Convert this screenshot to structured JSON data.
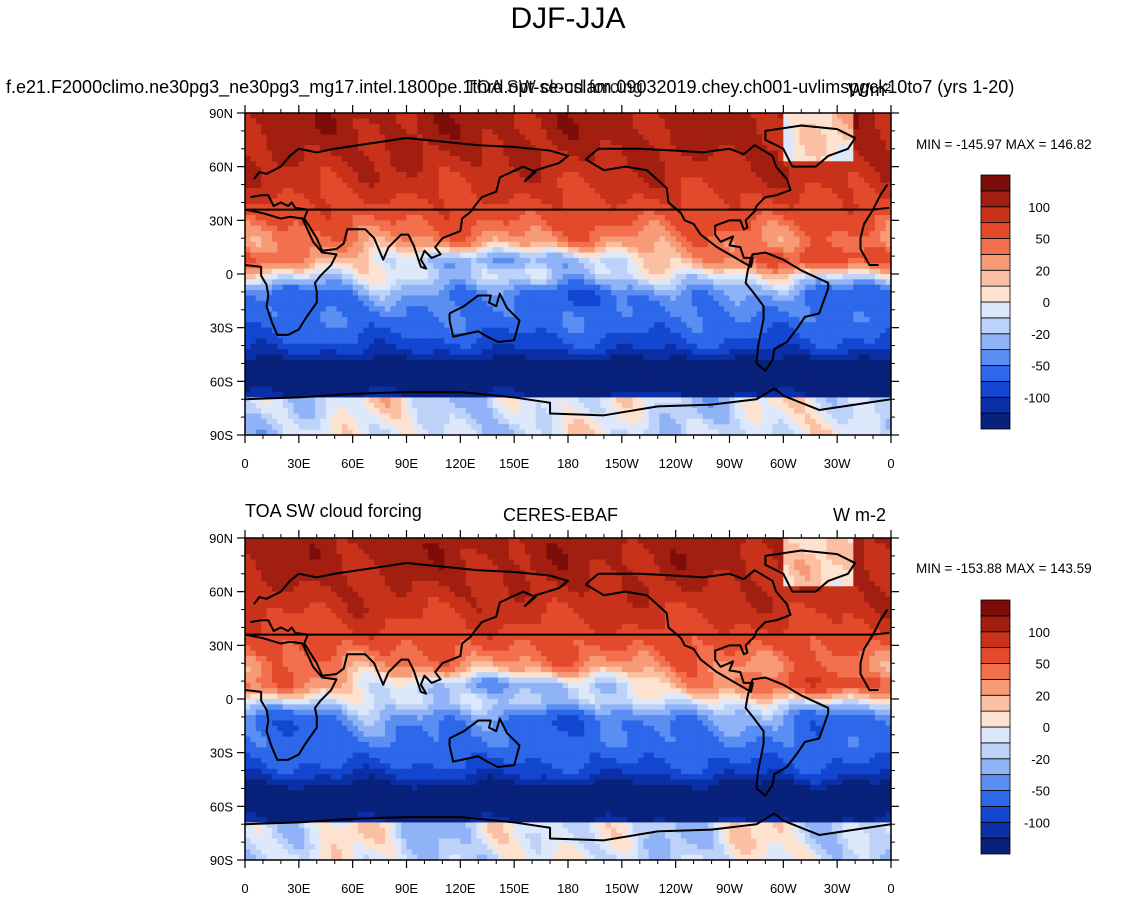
{
  "title": "DJF-JJA",
  "colors": {
    "ocean_land_boxes": "#000000",
    "levels": [
      "#08217a",
      "#0b2fa6",
      "#1346d1",
      "#2d67ea",
      "#5a8ef3",
      "#8fb3f6",
      "#bdd2f8",
      "#dde9fb",
      "#fde2cf",
      "#fbc0a3",
      "#f79a76",
      "#f2704e",
      "#e34a2b",
      "#c8321a",
      "#a11e10",
      "#7c0d08"
    ]
  },
  "chart_data": [
    {
      "type": "heatmap",
      "panel": "top",
      "left_title": "f.e21.F2000climo.ne30pg3_ne30pg3_mg17.intel.1800pe.1thrd.opt-se-cslam.09032019.chey.ch001-uvlimspgck10to7 (yrs 1-20)",
      "center_title": "TOA SW cloud forcing",
      "units": "W m-2",
      "units_label": "W/m²",
      "min_max": "MIN = -145.97   MAX = 146.82",
      "y_ticks": [
        "90N",
        "60N",
        "30N",
        "0",
        "30S",
        "60S",
        "90S"
      ],
      "x_ticks": [
        "0",
        "30E",
        "60E",
        "90E",
        "120E",
        "150E",
        "180",
        "150W",
        "120W",
        "90W",
        "60W",
        "30W",
        "0"
      ],
      "colorbar_labels": [
        "100",
        "50",
        "20",
        "0",
        "-20",
        "-50",
        "-100"
      ],
      "levels": [
        -150,
        -125,
        -100,
        -75,
        -50,
        -35,
        -20,
        -10,
        0,
        10,
        20,
        35,
        50,
        75,
        100,
        125,
        150
      ]
    },
    {
      "type": "heatmap",
      "panel": "bottom",
      "left_title": "TOA SW cloud forcing",
      "center_title": "CERES-EBAF",
      "units": "W m-2",
      "min_max": "MIN = -153.88   MAX = 143.59",
      "y_ticks": [
        "90N",
        "60N",
        "30N",
        "0",
        "30S",
        "60S",
        "90S"
      ],
      "x_ticks": [
        "0",
        "30E",
        "60E",
        "90E",
        "120E",
        "150E",
        "180",
        "150W",
        "120W",
        "90W",
        "60W",
        "30W",
        "0"
      ],
      "colorbar_labels": [
        "100",
        "50",
        "20",
        "0",
        "-20",
        "-50",
        "-100"
      ],
      "levels": [
        -150,
        -125,
        -100,
        -75,
        -50,
        -35,
        -20,
        -10,
        0,
        10,
        20,
        35,
        50,
        75,
        100,
        125,
        150
      ]
    }
  ]
}
